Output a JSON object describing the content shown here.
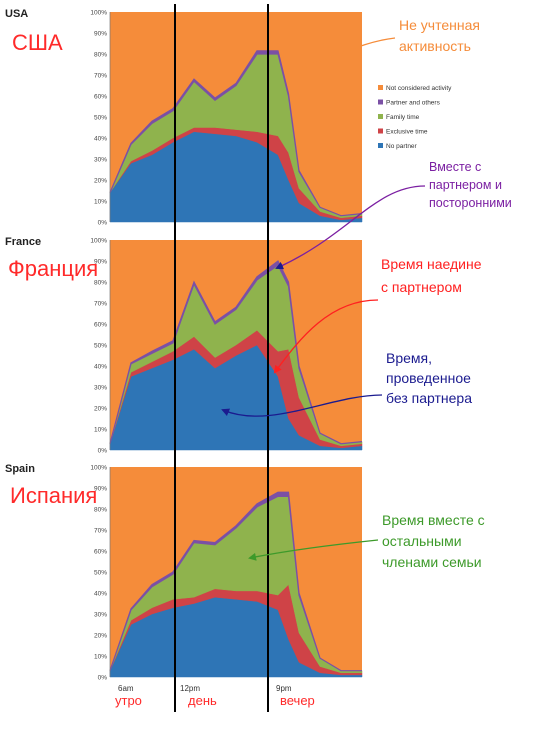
{
  "chart_data": {
    "type": "area",
    "stacked": true,
    "ylim": [
      0,
      100
    ],
    "yticks": [
      "0%",
      "10%",
      "20%",
      "30%",
      "40%",
      "50%",
      "60%",
      "70%",
      "80%",
      "90%",
      "100%"
    ],
    "x_tick_labels": [
      "6am",
      "12pm",
      "9pm"
    ],
    "x_hours": [
      4,
      6,
      8,
      10,
      12,
      14,
      16,
      18,
      20,
      21,
      22,
      24,
      26,
      28
    ],
    "legend_placement": "right of first panel",
    "legend": [
      {
        "label": "Not considered activity",
        "color": "#f58c3a"
      },
      {
        "label": "Partner and others",
        "color": "#7b50a5"
      },
      {
        "label": "Family time",
        "color": "#8fb34d"
      },
      {
        "label": "Exclusive time",
        "color": "#cf4347"
      },
      {
        "label": "No partner",
        "color": "#2e75b6"
      }
    ],
    "series_colors": {
      "no_partner": "#2e75b6",
      "exclusive": "#cf4347",
      "family": "#8fb34d",
      "partner_others": "#7b50a5",
      "not_considered": "#f58c3a"
    },
    "panels": [
      {
        "name": "USA",
        "ru_name": "США",
        "no_partner": [
          14,
          28,
          32,
          38,
          43,
          42,
          41,
          38,
          32,
          20,
          9,
          3,
          1,
          2
        ],
        "exclusive": [
          0,
          1,
          2,
          2,
          2,
          3,
          3,
          5,
          9,
          13,
          7,
          2,
          1,
          1
        ],
        "family": [
          0,
          8,
          13,
          13,
          22,
          13,
          21,
          37,
          39,
          27,
          8,
          2,
          1,
          1
        ],
        "partner_others": [
          0,
          0.5,
          1,
          1,
          1,
          1,
          1,
          1.5,
          1.5,
          1,
          0.5,
          0,
          0,
          0
        ]
      },
      {
        "name": "France",
        "ru_name": "Франция",
        "no_partner": [
          3,
          35,
          39,
          43,
          48,
          39,
          45,
          50,
          35,
          15,
          7,
          2,
          1,
          2
        ],
        "exclusive": [
          0,
          2,
          3,
          4,
          6,
          5,
          5,
          7,
          12,
          33,
          18,
          3,
          1,
          1
        ],
        "family": [
          0,
          4,
          4,
          4,
          25,
          16,
          17,
          24,
          41,
          30,
          14,
          3,
          1,
          1
        ],
        "partner_others": [
          0,
          0.5,
          1,
          1,
          1,
          1,
          1,
          1.5,
          2,
          2,
          1,
          0,
          0,
          0
        ]
      },
      {
        "name": "Spain",
        "ru_name": "Испания",
        "no_partner": [
          3,
          25,
          30,
          33,
          35,
          38,
          37,
          36,
          32,
          18,
          7,
          2,
          1,
          1
        ],
        "exclusive": [
          0,
          2,
          3,
          4,
          3,
          4,
          4,
          5,
          7,
          26,
          14,
          3,
          1,
          1
        ],
        "family": [
          0,
          5,
          10,
          12,
          26,
          21,
          30,
          40,
          47,
          42,
          18,
          4,
          1,
          1
        ],
        "partner_others": [
          0,
          0.5,
          1,
          1,
          1,
          1,
          1,
          1.5,
          2,
          2,
          1,
          0,
          0,
          0
        ]
      }
    ],
    "period_labels": [
      "утро",
      "день",
      "вечер"
    ],
    "annotations": [
      {
        "id": "not_considered",
        "lines": [
          "Не учтенная",
          "активность"
        ],
        "color": "#f58c3a"
      },
      {
        "id": "partner_others",
        "lines": [
          "Вместе с",
          "партнером и",
          "посторонними"
        ],
        "color": "#7b1fa2"
      },
      {
        "id": "exclusive",
        "lines": [
          "Время наедине",
          "с партнером"
        ],
        "color": "#ff2020"
      },
      {
        "id": "no_partner",
        "lines": [
          "Время,",
          "проведенное",
          "без партнера"
        ],
        "color": "#1b1b8f"
      },
      {
        "id": "family",
        "lines": [
          "Время вместе с",
          "остальными",
          "членами семьи"
        ],
        "color": "#3d9a2a"
      }
    ]
  }
}
